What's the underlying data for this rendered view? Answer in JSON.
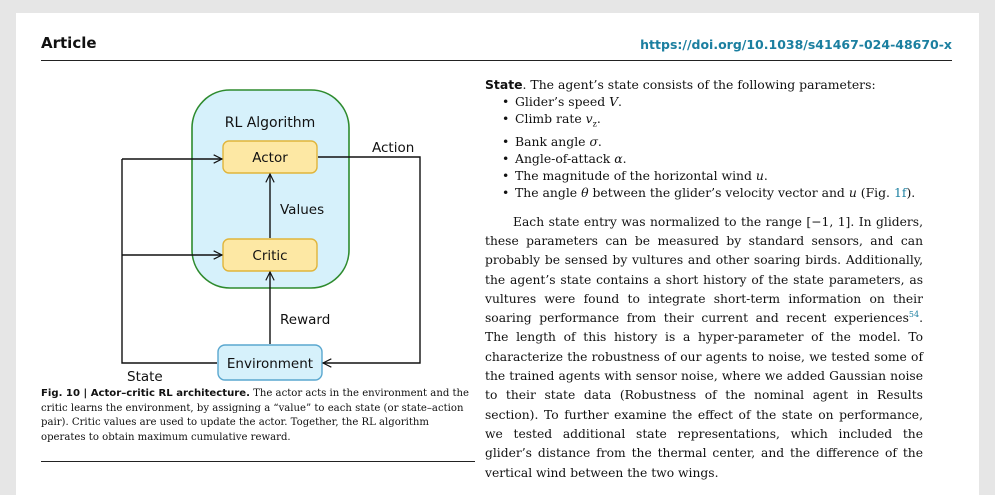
{
  "header": {
    "section": "Article",
    "doi": "https://doi.org/10.1038/s41467-024-48670-x"
  },
  "figure": {
    "algorithm_label": "RL Algorithm",
    "actor_label": "Actor",
    "critic_label": "Critic",
    "values_label": "Values",
    "reward_label": "Reward",
    "environment_label": "Environment",
    "action_label": "Action",
    "state_label": "State",
    "colors": {
      "algorithm_fill": "#d6f1fb",
      "algorithm_border": "#2e8b2e",
      "box_fill": "#fde8a4",
      "box_border": "#e0b53b",
      "env_fill": "#d6f1fb",
      "env_border": "#5aa7cf"
    }
  },
  "caption": {
    "label": "Fig. 10 | Actor–critic RL architecture.",
    "text": " The actor acts in the environment and the critic learns the environment, by assigning a “value” to each state (or state–action pair). Critic values are used to update the actor. Together, the RL algorithm operates to obtain maximum cumulative reward."
  },
  "body": {
    "state_heading": "State",
    "state_intro": ". The agent’s state consists of the following parameters:",
    "bullets": [
      {
        "pre": "Glider’s speed ",
        "sym": "V",
        "post": "."
      },
      {
        "pre": "Climb rate ",
        "sym": "v",
        "sub": "z",
        "post": "."
      },
      {
        "pre": "Bank angle ",
        "sym": "σ",
        "post": "."
      },
      {
        "pre": "Angle-of-attack ",
        "sym": "α",
        "post": "."
      },
      {
        "pre": "The magnitude of the horizontal wind ",
        "sym": "u",
        "post": "."
      },
      {
        "pre": "The angle ",
        "sym": "θ",
        "mid": " between the glider’s velocity vector and ",
        "sym2": "u",
        "post": " (Fig. ",
        "ref": "1f",
        "end": ")."
      }
    ],
    "para_a": "Each state entry was normalized to the range [−1, 1]. In gliders, these parameters can be measured by standard sensors, and can probably be sensed by vultures and other soaring birds. Additionally, the agent’s state contains a short history of the state parameters, as vultures were found to integrate short-term information on their soaring performance from their current and recent experiences",
    "para_ref": "54",
    "para_b": ". The length of this history is a hyper-parameter of the model. To characterize the robustness of our agents to noise, we tested some of the trained agents with sensor noise, where we added Gaussian noise to their state data (Robustness of the nominal agent in Results section). To further examine the effect of the state on performance, we tested additional state representations, which included the glider’s distance from the thermal center, and the difference of the vertical wind between the two wings."
  }
}
